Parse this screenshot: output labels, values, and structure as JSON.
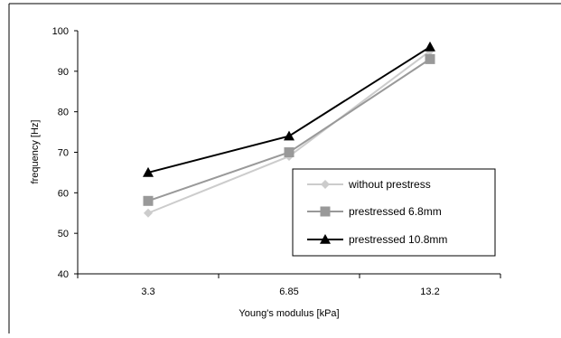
{
  "chart_data": {
    "type": "line",
    "title": "",
    "xlabel": "Young's modulus  [kPa]",
    "ylabel": "frequency [Hz]",
    "categories": [
      "3.3",
      "6.85",
      "13.2"
    ],
    "ylim": [
      40,
      100
    ],
    "yticks": [
      40,
      50,
      60,
      70,
      80,
      90,
      100
    ],
    "grid": false,
    "legend_position": "bottom-right",
    "series": [
      {
        "name": "without prestress",
        "values": [
          55,
          69,
          95
        ],
        "color": "#cccccc",
        "marker": "diamond"
      },
      {
        "name": "prestressed 6.8mm",
        "values": [
          58,
          70,
          93
        ],
        "color": "#999999",
        "marker": "square"
      },
      {
        "name": "prestressed 10.8mm",
        "values": [
          65,
          74,
          96
        ],
        "color": "#000000",
        "marker": "triangle"
      }
    ]
  }
}
